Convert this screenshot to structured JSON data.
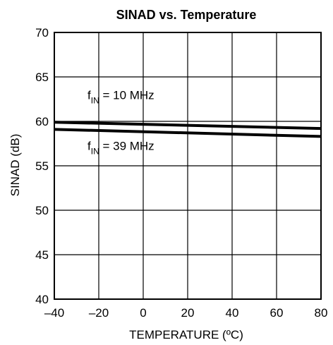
{
  "chart_data": {
    "type": "line",
    "title": "SINAD vs. Temperature",
    "xlabel": "TEMPERATURE (ºC)",
    "ylabel": "SINAD (dB)",
    "xlim": [
      -40,
      80
    ],
    "ylim": [
      40,
      70
    ],
    "xticks": [
      -40,
      -20,
      0,
      20,
      40,
      60,
      80
    ],
    "yticks": [
      40,
      45,
      50,
      55,
      60,
      65,
      70
    ],
    "grid": true,
    "legend": "none",
    "line_color": "#000000",
    "series": [
      {
        "x": [
          -40,
          80
        ],
        "values": [
          59.9,
          59.2
        ]
      },
      {
        "x": [
          -40,
          80
        ],
        "values": [
          59.1,
          58.3
        ]
      }
    ],
    "annotations": [
      {
        "main": "f",
        "sub": "IN",
        "rest": " = 10 MHz",
        "x": -20,
        "y": 62.5
      },
      {
        "main": "f",
        "sub": "IN",
        "rest": " = 39 MHz",
        "x": -20,
        "y": 56.8
      }
    ]
  }
}
